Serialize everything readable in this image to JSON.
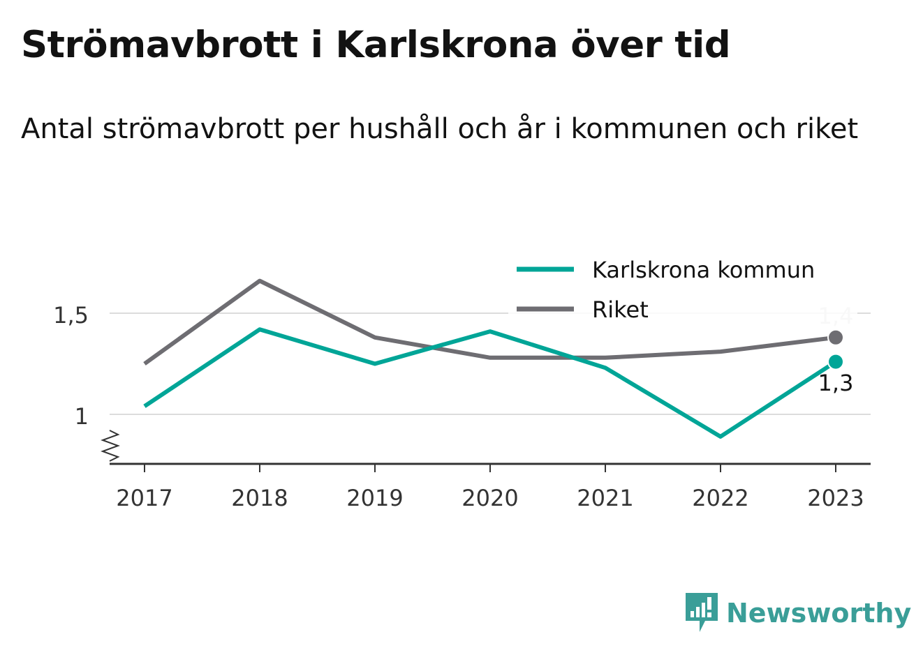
{
  "header": {
    "title": "Strömavbrott i Karlskrona över tid",
    "subtitle": "Antal strömavbrott per hushåll och år i kommunen och riket"
  },
  "brand": {
    "name": "Newsworthy",
    "color": "#3a9e98",
    "icon": "newsworthy-bar-chart-icon"
  },
  "chart_data": {
    "type": "line",
    "categories": [
      "2017",
      "2018",
      "2019",
      "2020",
      "2021",
      "2022",
      "2023"
    ],
    "y_ticks": [
      {
        "value": 1,
        "label": "1"
      },
      {
        "value": 1.5,
        "label": "1,5"
      }
    ],
    "ylim": [
      0.77,
      1.95
    ],
    "y_axis_break": true,
    "grid": true,
    "legend_position": "top-right",
    "series": [
      {
        "name": "Karlskrona kommun",
        "color": "#00a597",
        "values": [
          1.04,
          1.42,
          1.25,
          1.41,
          1.23,
          0.89,
          1.26
        ],
        "end_label": "1,3"
      },
      {
        "name": "Riket",
        "color": "#6e6d72",
        "values": [
          1.25,
          1.66,
          1.38,
          1.28,
          1.28,
          1.31,
          1.38
        ],
        "end_label": "1,4"
      }
    ]
  }
}
